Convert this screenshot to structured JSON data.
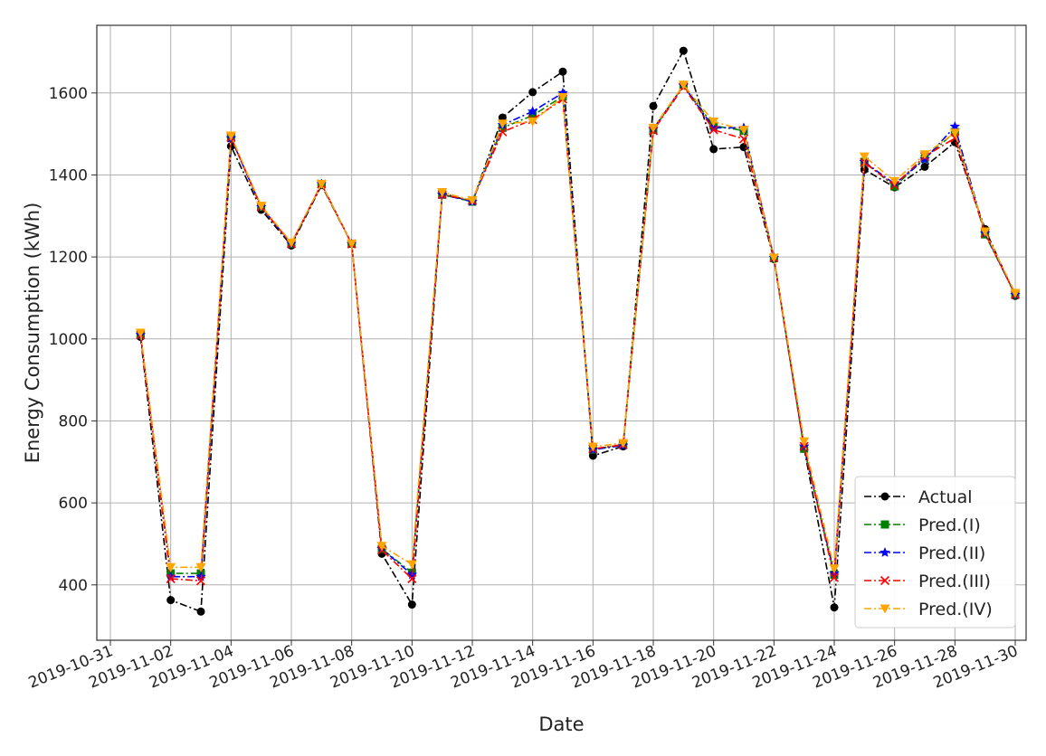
{
  "chart_data": {
    "type": "line",
    "title": "",
    "xlabel": "Date",
    "ylabel": "Energy Consumption (kWh)",
    "x_ticks": [
      "2019-10-31",
      "2019-11-02",
      "2019-11-04",
      "2019-11-06",
      "2019-11-08",
      "2019-11-10",
      "2019-11-12",
      "2019-11-14",
      "2019-11-16",
      "2019-11-18",
      "2019-11-20",
      "2019-11-22",
      "2019-11-24",
      "2019-11-26",
      "2019-11-28",
      "2019-11-30"
    ],
    "y_ticks": [
      400,
      600,
      800,
      1000,
      1200,
      1400,
      1600
    ],
    "xlim": [
      "2019-10-31",
      "2019-11-30"
    ],
    "ylim": [
      265,
      1765
    ],
    "grid": true,
    "legend_position": "bottom-right",
    "x": [
      "2019-11-01",
      "2019-11-02",
      "2019-11-03",
      "2019-11-04",
      "2019-11-05",
      "2019-11-06",
      "2019-11-07",
      "2019-11-08",
      "2019-11-09",
      "2019-11-10",
      "2019-11-11",
      "2019-11-12",
      "2019-11-13",
      "2019-11-14",
      "2019-11-15",
      "2019-11-16",
      "2019-11-17",
      "2019-11-18",
      "2019-11-19",
      "2019-11-20",
      "2019-11-21",
      "2019-11-22",
      "2019-11-23",
      "2019-11-24",
      "2019-11-25",
      "2019-11-26",
      "2019-11-27",
      "2019-11-28",
      "2019-11-29",
      "2019-11-30"
    ],
    "series": [
      {
        "name": "Actual",
        "color": "#000000",
        "marker": "circle",
        "values": [
          1005,
          363,
          335,
          1470,
          1315,
          1228,
          1375,
          1232,
          476,
          352,
          1355,
          1335,
          1540,
          1602,
          1652,
          715,
          738,
          1568,
          1703,
          1463,
          1468,
          1195,
          733,
          345,
          1413,
          1370,
          1420,
          1480,
          1268,
          1105
        ]
      },
      {
        "name": "Pred.(I)",
        "color": "#008000",
        "marker": "square",
        "values": [
          1010,
          428,
          428,
          1490,
          1322,
          1232,
          1378,
          1232,
          488,
          430,
          1352,
          1335,
          1515,
          1545,
          1592,
          730,
          743,
          1510,
          1618,
          1520,
          1508,
          1198,
          732,
          425,
          1432,
          1372,
          1440,
          1505,
          1255,
          1108
        ]
      },
      {
        "name": "Pred.(II)",
        "color": "#0000ff",
        "marker": "star",
        "values": [
          1010,
          420,
          420,
          1490,
          1322,
          1232,
          1378,
          1232,
          488,
          425,
          1352,
          1335,
          1522,
          1555,
          1600,
          730,
          740,
          1512,
          1618,
          1515,
          1515,
          1198,
          738,
          428,
          1432,
          1378,
          1438,
          1518,
          1258,
          1108
        ]
      },
      {
        "name": "Pred.(III)",
        "color": "#ff0000",
        "marker": "x",
        "values": [
          1010,
          415,
          410,
          1492,
          1322,
          1232,
          1378,
          1232,
          485,
          415,
          1352,
          1338,
          1505,
          1535,
          1585,
          732,
          742,
          1508,
          1615,
          1510,
          1488,
          1198,
          738,
          418,
          1430,
          1375,
          1445,
          1490,
          1258,
          1108
        ]
      },
      {
        "name": "Pred.(IV)",
        "color": "#ffa500",
        "marker": "triangle-down",
        "values": [
          1015,
          443,
          443,
          1496,
          1325,
          1235,
          1378,
          1232,
          495,
          450,
          1358,
          1338,
          1525,
          1530,
          1590,
          737,
          746,
          1515,
          1620,
          1530,
          1510,
          1198,
          750,
          440,
          1445,
          1385,
          1450,
          1503,
          1262,
          1112
        ]
      }
    ]
  }
}
